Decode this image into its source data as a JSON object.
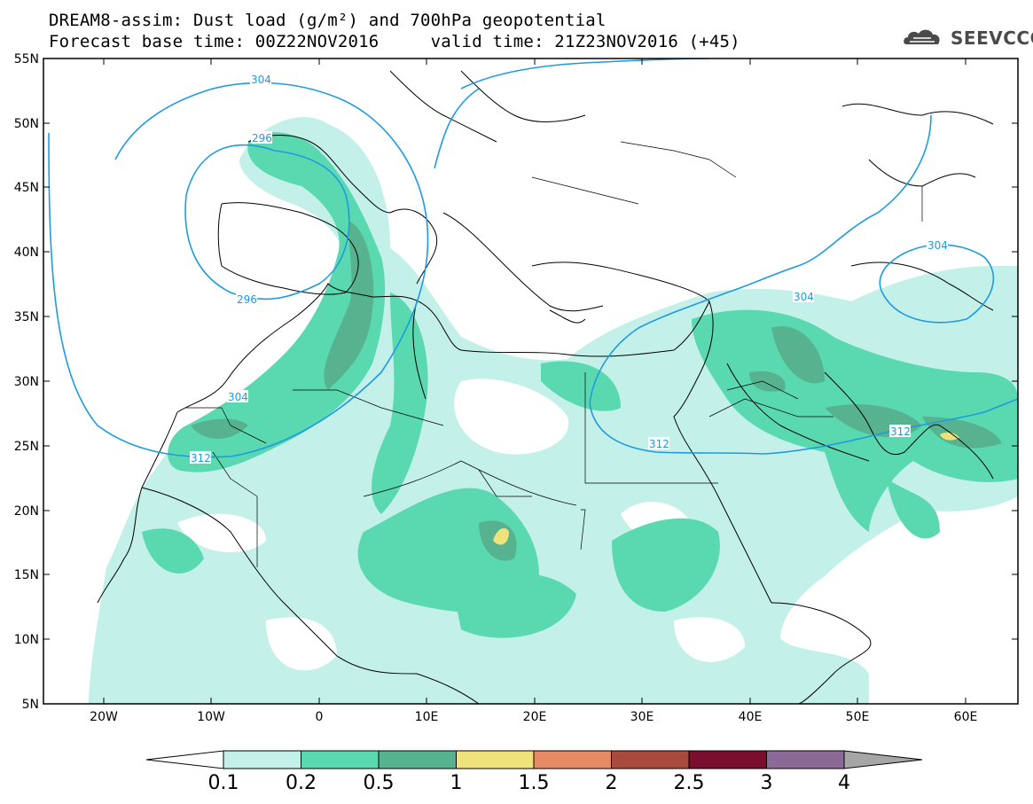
{
  "title_line1": "DREAM8-assim: Dust load (g/m²) and 700hPa geopotential",
  "title_line2": "Forecast base time: 00Z22NOV2016     valid time: 21Z23NOV2016 (+45)",
  "logo": "SEEVCCC",
  "logo_icon": "cloud-icon",
  "lat_labels": [
    "55N",
    "50N",
    "45N",
    "40N",
    "35N",
    "30N",
    "25N",
    "20N",
    "15N",
    "10N",
    "5N"
  ],
  "lon_labels": [
    "20W",
    "10W",
    "0",
    "10E",
    "20E",
    "30E",
    "40E",
    "50E",
    "60E"
  ],
  "contour_labels": [
    "304",
    "296",
    "296",
    "304",
    "312",
    "304",
    "304",
    "312",
    "312"
  ],
  "legend": {
    "values": [
      "0.1",
      "0.2",
      "0.5",
      "1",
      "1.5",
      "2",
      "2.5",
      "3",
      "4"
    ],
    "colors": [
      "#c3f0e8",
      "#5ad9b0",
      "#57b38f",
      "#efe27a",
      "#e68a65",
      "#a94a3c",
      "#7a0e2e",
      "#8b6a98",
      "#a6a6a6"
    ]
  },
  "map_colors": {
    "contour": "#1e9be0",
    "coast": "#000000"
  }
}
